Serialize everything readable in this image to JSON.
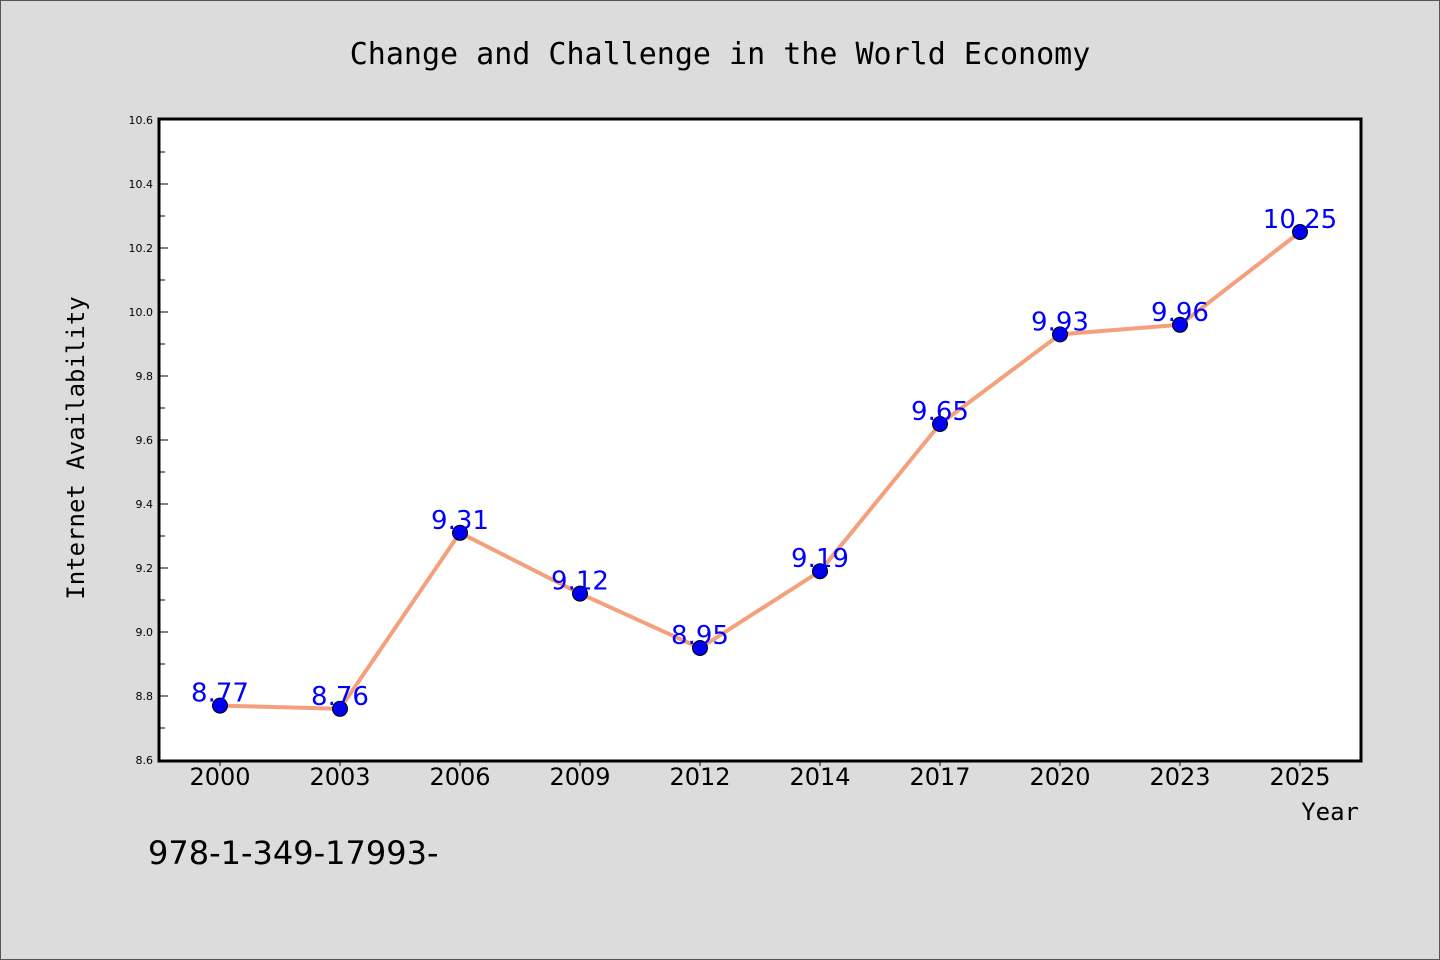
{
  "chart_data": {
    "type": "line",
    "title": "Change and Challenge in the World Economy",
    "xlabel": "Year",
    "ylabel": "Internet Availability",
    "categories": [
      "2000",
      "2003",
      "2006",
      "2009",
      "2012",
      "2014",
      "2017",
      "2020",
      "2023",
      "2025"
    ],
    "values": [
      8.77,
      8.76,
      9.31,
      9.12,
      8.95,
      9.19,
      9.65,
      9.93,
      9.96,
      10.25
    ],
    "data_labels": [
      "8.77",
      "8.76",
      "9.31",
      "9.12",
      "8.95",
      "9.19",
      "9.65",
      "9.93",
      "9.96",
      "10.25"
    ],
    "ylim": [
      8.6,
      10.6
    ],
    "yticks": [
      "8.6",
      "8.8",
      "9.0",
      "9.2",
      "9.4",
      "9.6",
      "9.8",
      "10.0",
      "10.2",
      "10.4",
      "10.6"
    ],
    "grid": false,
    "legend": "none",
    "colors": {
      "line": "#f4a07c",
      "marker": "#0000ee",
      "label": "#0000ff",
      "background": "#dcdcdc",
      "plot_background": "#ffffff"
    }
  },
  "footnote": "978-1-349-17993-"
}
